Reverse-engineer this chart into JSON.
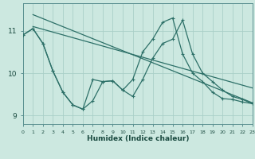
{
  "xlabel": "Humidex (Indice chaleur)",
  "background_color": "#cce8e0",
  "grid_color": "#aacfc8",
  "line_color": "#2d7068",
  "spine_color": "#5a9090",
  "xlim": [
    0,
    23
  ],
  "ylim": [
    8.8,
    11.65
  ],
  "xticks": [
    0,
    1,
    2,
    3,
    4,
    5,
    6,
    7,
    8,
    9,
    10,
    11,
    12,
    13,
    14,
    15,
    16,
    17,
    18,
    19,
    20,
    21,
    22,
    23
  ],
  "yticks": [
    9,
    10,
    11
  ],
  "series1_x": [
    0,
    1,
    2,
    3,
    4,
    5,
    6,
    7,
    8,
    9,
    10,
    11,
    12,
    13,
    14,
    15,
    16,
    17,
    18,
    19,
    20,
    21,
    22,
    23
  ],
  "series1_y": [
    10.9,
    11.05,
    10.7,
    10.05,
    9.55,
    9.25,
    9.15,
    9.35,
    9.8,
    9.82,
    9.6,
    9.85,
    10.5,
    10.8,
    11.2,
    11.3,
    10.45,
    10.0,
    9.8,
    9.55,
    9.4,
    9.38,
    9.32,
    9.28
  ],
  "series2_x": [
    0,
    1,
    2,
    3,
    4,
    5,
    6,
    7,
    8,
    9,
    10,
    11,
    12,
    13,
    14,
    15,
    16,
    17,
    18,
    19,
    20,
    21,
    22,
    23
  ],
  "series2_y": [
    10.9,
    11.05,
    10.7,
    10.05,
    9.55,
    9.25,
    9.15,
    9.85,
    9.8,
    9.82,
    9.6,
    9.45,
    9.85,
    10.35,
    10.7,
    10.8,
    11.25,
    10.45,
    10.0,
    9.8,
    9.6,
    9.45,
    9.38,
    9.28
  ],
  "line1_x": [
    1,
    23
  ],
  "line1_y": [
    11.38,
    9.3
  ],
  "line2_x": [
    1,
    23
  ],
  "line2_y": [
    11.1,
    9.65
  ]
}
